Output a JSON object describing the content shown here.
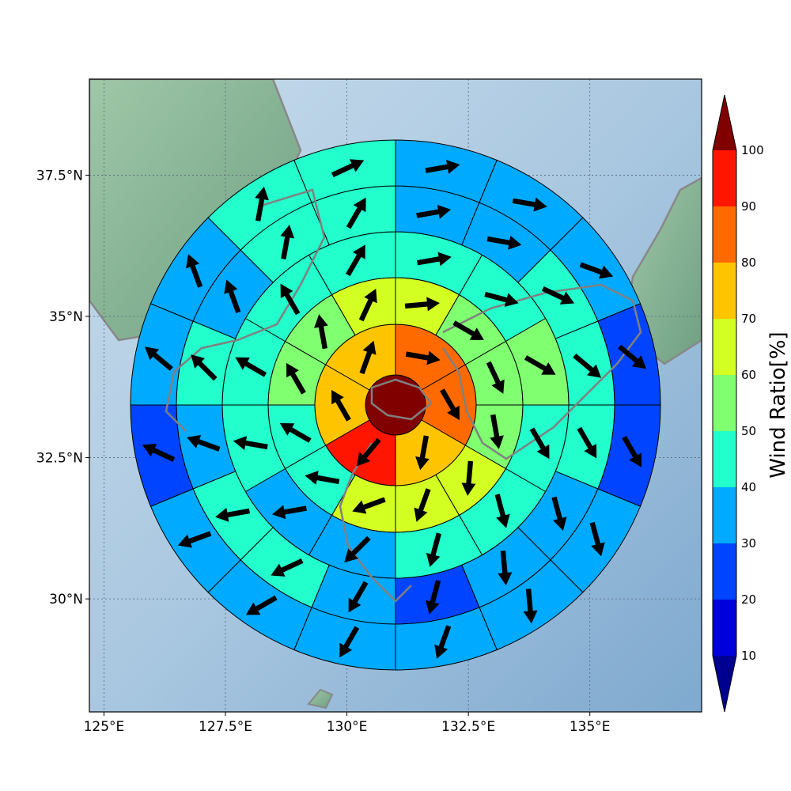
{
  "chart_data": {
    "type": "polar-sector-map",
    "center": {
      "lon": 131.0,
      "lat": 33.8
    },
    "x_range_lon": [
      124.7,
      137.3
    ],
    "y_range_lat": [
      28.0,
      39.2
    ],
    "x_ticks": [
      125,
      127.5,
      130,
      132.5,
      135
    ],
    "x_tick_labels": [
      "125°E",
      "127.5°E",
      "130°E",
      "132.5°E",
      "135°E"
    ],
    "y_ticks": [
      30,
      32.5,
      35,
      37.5
    ],
    "y_tick_labels": [
      "30°N",
      "32.5°N",
      "35°N",
      "37.5°N"
    ],
    "colorbar": {
      "label": "Wind Ratio[%]",
      "ticks": [
        10,
        20,
        30,
        40,
        50,
        60,
        70,
        80,
        90,
        100
      ],
      "tick_labels": [
        "10",
        "20",
        "30",
        "40",
        "50",
        "60",
        "70",
        "80",
        "90",
        "100"
      ],
      "colors": [
        "#000090",
        "#0000dd",
        "#0044ff",
        "#00aaff",
        "#22ffcc",
        "#80ff70",
        "#d4ff22",
        "#ffc400",
        "#ff6a00",
        "#ff1500",
        "#800000"
      ],
      "extend": "both"
    },
    "ring_sector_counts": [
      1,
      6,
      12,
      12,
      16,
      16
    ],
    "ring_values": [
      [
        100
      ],
      [
        85,
        85,
        75,
        95,
        75,
        75
      ],
      [
        65,
        55,
        55,
        55,
        65,
        65,
        65,
        45,
        45,
        55,
        55,
        65
      ],
      [
        45,
        45,
        55,
        45,
        45,
        45,
        35,
        35,
        45,
        45,
        45,
        45
      ],
      [
        35,
        35,
        45,
        45,
        45,
        35,
        35,
        25,
        35,
        45,
        45,
        35,
        45,
        35,
        45,
        45
      ],
      [
        35,
        35,
        35,
        25,
        25,
        35,
        35,
        35,
        35,
        35,
        35,
        25,
        35,
        35,
        45,
        45
      ]
    ],
    "ring_wind_directions_deg": [
      [],
      [
        100,
        150,
        190,
        220,
        330,
        20
      ],
      [
        85,
        120,
        155,
        170,
        185,
        200,
        250,
        280,
        300,
        330,
        350,
        25
      ],
      [
        80,
        105,
        120,
        150,
        165,
        195,
        225,
        260,
        280,
        300,
        330,
        30
      ],
      [
        80,
        100,
        115,
        130,
        150,
        165,
        175,
        195,
        210,
        245,
        260,
        290,
        315,
        340,
        10,
        30
      ],
      [
        80,
        100,
        110,
        130,
        150,
        165,
        175,
        200,
        210,
        240,
        250,
        295,
        310,
        340,
        10,
        65
      ]
    ]
  }
}
